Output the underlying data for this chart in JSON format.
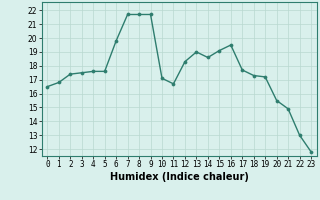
{
  "x": [
    0,
    1,
    2,
    3,
    4,
    5,
    6,
    7,
    8,
    9,
    10,
    11,
    12,
    13,
    14,
    15,
    16,
    17,
    18,
    19,
    20,
    21,
    22,
    23
  ],
  "y": [
    16.5,
    16.8,
    17.4,
    17.5,
    17.6,
    17.6,
    19.8,
    21.7,
    21.7,
    21.7,
    17.1,
    16.7,
    18.3,
    19.0,
    18.6,
    19.1,
    19.5,
    17.7,
    17.3,
    17.2,
    15.5,
    14.9,
    13.0,
    11.8
  ],
  "line_color": "#2e7d6e",
  "marker": "o",
  "marker_size": 2.2,
  "line_width": 1.0,
  "xlabel": "Humidex (Indice chaleur)",
  "ylabel": "",
  "xlim": [
    -0.5,
    23.5
  ],
  "ylim": [
    11.5,
    22.6
  ],
  "yticks": [
    12,
    13,
    14,
    15,
    16,
    17,
    18,
    19,
    20,
    21,
    22
  ],
  "xticks": [
    0,
    1,
    2,
    3,
    4,
    5,
    6,
    7,
    8,
    9,
    10,
    11,
    12,
    13,
    14,
    15,
    16,
    17,
    18,
    19,
    20,
    21,
    22,
    23
  ],
  "bg_color": "#d9f0ec",
  "grid_color": "#b8d8d0",
  "label_fontsize": 6.5,
  "tick_fontsize": 5.5,
  "xlabel_fontsize": 7.0,
  "spine_color": "#2e7d6e"
}
